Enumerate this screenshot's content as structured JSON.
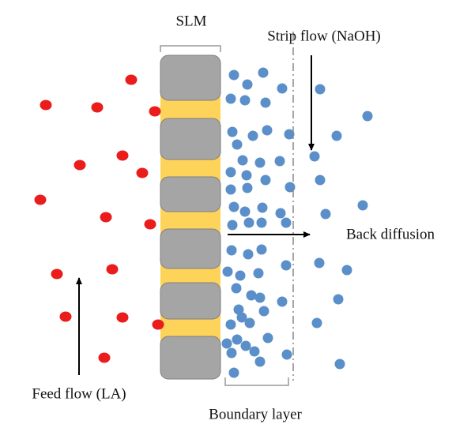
{
  "labels": {
    "membrane": "SLM",
    "strip_flow": "Strip flow (NaOH)",
    "back_diffusion": "Back diffusion",
    "feed_flow": "Feed flow (LA)",
    "boundary_layer": "Boundary layer"
  }
}
